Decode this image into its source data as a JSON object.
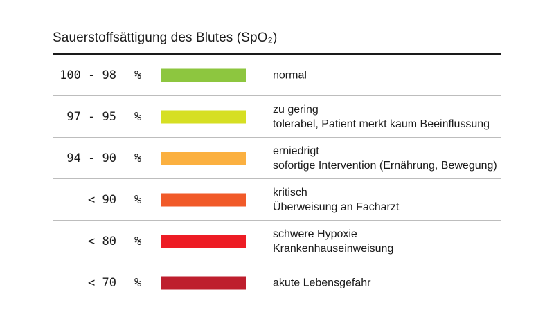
{
  "title": "Sauerstoffsättigung des Blutes (SpO₂)",
  "rows": [
    {
      "range": "100 - 98",
      "unit": "%",
      "color": "#8dc63f",
      "lines": [
        "normal"
      ]
    },
    {
      "range": "97 - 95",
      "unit": "%",
      "color": "#d6df23",
      "lines": [
        "zu gering",
        "tolerabel, Patient merkt kaum Beeinflussung"
      ]
    },
    {
      "range": "94 - 90",
      "unit": "%",
      "color": "#fbb040",
      "lines": [
        "erniedrigt",
        "sofortige Intervention (Ernährung, Bewegung)"
      ]
    },
    {
      "range": "< 90",
      "unit": "%",
      "color": "#f15a29",
      "lines": [
        "kritisch",
        "Überweisung an Facharzt"
      ]
    },
    {
      "range": "< 80",
      "unit": "%",
      "color": "#ed1c24",
      "lines": [
        "schwere Hypoxie",
        "Krankenhauseinweisung"
      ]
    },
    {
      "range": "< 70",
      "unit": "%",
      "color": "#be1e2d",
      "lines": [
        "akute Lebensgefahr"
      ]
    }
  ]
}
